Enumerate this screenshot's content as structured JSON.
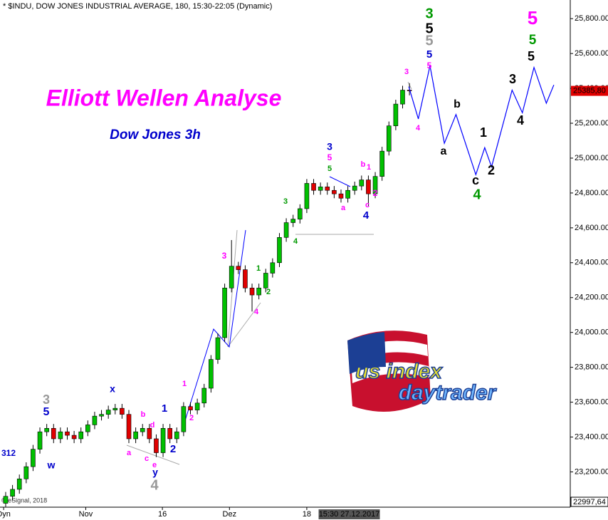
{
  "chart_data": {
    "type": "candlestick",
    "title": "* $INDU, DOW JONES INDUSTRIAL AVERAGE, 180, 15:30-22:05 (Dynamic)",
    "headline": "Elliott Wellen Analyse",
    "subtitle": "Dow Jones 3h",
    "credit": "© eSignal, 2018",
    "logo": [
      "us index",
      "daytrader"
    ],
    "up_color": "#00c000",
    "down_color": "#e00000",
    "open": [
      23020,
      23060,
      23100,
      23160,
      23230,
      23330,
      23430,
      23450,
      23390,
      23430,
      23410,
      23390,
      23430,
      23470,
      23520,
      23530,
      23555,
      23565,
      23530,
      23390,
      23430,
      23450,
      23390,
      23310,
      23450,
      23390,
      23430,
      23575,
      23555,
      23595,
      23680,
      23845,
      23970,
      24255,
      24380,
      24360,
      24255,
      24215,
      24255,
      24340,
      24400,
      24545,
      24630,
      24650,
      24710,
      24855,
      24815,
      24835,
      24815,
      24795,
      24770,
      24815,
      24840,
      24875,
      24795,
      24895,
      25040,
      25185,
      25310,
      25390
    ],
    "high": [
      23085,
      23125,
      23185,
      23255,
      23355,
      23455,
      23475,
      23475,
      23455,
      23455,
      23435,
      23455,
      23495,
      23545,
      23555,
      23580,
      23590,
      23590,
      23555,
      23455,
      23475,
      23475,
      23415,
      23475,
      23475,
      23455,
      23600,
      23600,
      23620,
      23705,
      23870,
      23995,
      24280,
      24530,
      24405,
      24385,
      24280,
      24280,
      24365,
      24425,
      24570,
      24655,
      24675,
      24735,
      24880,
      24880,
      24860,
      24860,
      24840,
      24820,
      24840,
      24865,
      24900,
      24900,
      24920,
      25065,
      25210,
      25335,
      25415,
      25430
    ],
    "low": [
      23000,
      23035,
      23075,
      23135,
      23205,
      23305,
      23405,
      23365,
      23365,
      23385,
      23365,
      23365,
      23405,
      23445,
      23495,
      23505,
      23530,
      23505,
      23365,
      23365,
      23405,
      23365,
      23285,
      23285,
      23365,
      23365,
      23405,
      23530,
      23530,
      23570,
      23655,
      23820,
      23945,
      24230,
      24335,
      24230,
      24120,
      24190,
      24230,
      24315,
      24375,
      24520,
      24605,
      24625,
      24685,
      24790,
      24790,
      24790,
      24770,
      24745,
      24745,
      24790,
      24815,
      24720,
      24770,
      24870,
      25015,
      25160,
      25285,
      25360
    ],
    "close": [
      23060,
      23100,
      23160,
      23230,
      23330,
      23430,
      23450,
      23390,
      23430,
      23410,
      23390,
      23430,
      23470,
      23520,
      23530,
      23555,
      23565,
      23530,
      23390,
      23430,
      23450,
      23390,
      23310,
      23450,
      23390,
      23430,
      23575,
      23555,
      23595,
      23680,
      23845,
      23970,
      24255,
      24380,
      24360,
      24255,
      24215,
      24255,
      24340,
      24400,
      24545,
      24630,
      24650,
      24710,
      24855,
      24815,
      24835,
      24815,
      24795,
      24770,
      24815,
      24840,
      24875,
      24795,
      24895,
      25040,
      25185,
      25310,
      25390,
      25385.8
    ],
    "projection": {
      "color": "#0000ff",
      "x": [
        58.9,
        60.3,
        62,
        64.1,
        65.8,
        68.7,
        70,
        71,
        74,
        75.5,
        77.2,
        79,
        80.1
      ],
      "values": [
        25410,
        25225,
        25530,
        25085,
        25250,
        24905,
        25060,
        24950,
        25390,
        25260,
        25520,
        25315,
        25420
      ]
    },
    "xlim": [
      -0.83,
      82.5
    ],
    "ylim": [
      22997.64,
      25907
    ],
    "xticks": [
      {
        "value": -0.3,
        "label": "Dyn"
      },
      {
        "value": 11.7,
        "label": "Nov"
      },
      {
        "value": 22.9,
        "label": "16"
      },
      {
        "value": 32.7,
        "label": "Dez"
      },
      {
        "value": 44,
        "label": "18"
      }
    ],
    "crosshair": {
      "value": 50.2,
      "label": "15:30 27.12.2017"
    },
    "yticks": [
      {
        "value": 23200,
        "label": "23,200.00"
      },
      {
        "value": 23400,
        "label": "23,400.00"
      },
      {
        "value": 23600,
        "label": "23,600.00"
      },
      {
        "value": 23800,
        "label": "23,800.00"
      },
      {
        "value": 24000,
        "label": "24,000.00"
      },
      {
        "value": 24200,
        "label": "24,200.00"
      },
      {
        "value": 24400,
        "label": "24,400.00"
      },
      {
        "value": 24600,
        "label": "24,600.00"
      },
      {
        "value": 24800,
        "label": "24,800.00"
      },
      {
        "value": 25000,
        "label": "25,000.00"
      },
      {
        "value": 25200,
        "label": "25,200.00"
      },
      {
        "value": 25400,
        "label": "25,400.00"
      },
      {
        "value": 25600,
        "label": "25,600.00"
      },
      {
        "value": 25800,
        "label": "25,800.00"
      }
    ],
    "ymin_label": {
      "value": 22997.64,
      "label": "22997,64"
    },
    "last_price": {
      "value": 25385.8,
      "label": "25385,80"
    },
    "wave_labels": [
      {
        "text": "312",
        "color": "#0000cc"
      },
      {
        "text": "3",
        "color": "#999999"
      },
      {
        "text": "5",
        "color": "#0000cc"
      },
      {
        "text": "w",
        "color": "#0000cc"
      },
      {
        "text": "x",
        "color": "#0000cc"
      },
      {
        "text": "a",
        "color": "#ff00ff"
      },
      {
        "text": "b",
        "color": "#ff00ff"
      },
      {
        "text": "c",
        "color": "#ff00ff"
      },
      {
        "text": "d",
        "color": "#ff00ff"
      },
      {
        "text": "e",
        "color": "#ff00ff"
      },
      {
        "text": "y",
        "color": "#0000cc"
      },
      {
        "text": "4",
        "color": "#999999"
      },
      {
        "text": "1",
        "color": "#0000cc"
      },
      {
        "text": "2",
        "color": "#0000cc"
      },
      {
        "text": "1",
        "color": "#ff00ff"
      },
      {
        "text": "2",
        "color": "#ff00ff"
      },
      {
        "text": "3",
        "color": "#ff00ff"
      },
      {
        "text": "4",
        "color": "#ff00ff"
      },
      {
        "text": "1",
        "color": "#009900"
      },
      {
        "text": "2",
        "color": "#009900"
      },
      {
        "text": "3",
        "color": "#009900"
      },
      {
        "text": "4",
        "color": "#009900"
      },
      {
        "text": "3",
        "color": "#0000cc"
      },
      {
        "text": "5",
        "color": "#ff00ff"
      },
      {
        "text": "5",
        "color": "#009900"
      },
      {
        "text": "a",
        "color": "#ff00ff"
      },
      {
        "text": "b",
        "color": "#ff00ff"
      },
      {
        "text": "1",
        "color": "#ff00ff"
      },
      {
        "text": "c",
        "color": "#ff00ff"
      },
      {
        "text": "2",
        "color": "#ff00ff"
      },
      {
        "text": "4",
        "color": "#0000cc"
      },
      {
        "text": "3",
        "color": "#ff00ff"
      },
      {
        "text": "4",
        "color": "#ff00ff"
      },
      {
        "text": "3",
        "color": "#009900"
      },
      {
        "text": "5",
        "color": "#000000"
      },
      {
        "text": "5",
        "color": "#999999"
      },
      {
        "text": "5",
        "color": "#0000cc"
      },
      {
        "text": "5",
        "color": "#ff00ff"
      },
      {
        "text": "a",
        "color": "#000000"
      },
      {
        "text": "b",
        "color": "#000000"
      },
      {
        "text": "c",
        "color": "#000000"
      },
      {
        "text": "4",
        "color": "#009900"
      },
      {
        "text": "1",
        "color": "#000000"
      },
      {
        "text": "2",
        "color": "#000000"
      },
      {
        "text": "3",
        "color": "#000000"
      },
      {
        "text": "4",
        "color": "#000000"
      },
      {
        "text": "5",
        "color": "#000000"
      },
      {
        "text": "5",
        "color": "#009900"
      },
      {
        "text": "5",
        "color": "#ff00ff"
      }
    ]
  }
}
